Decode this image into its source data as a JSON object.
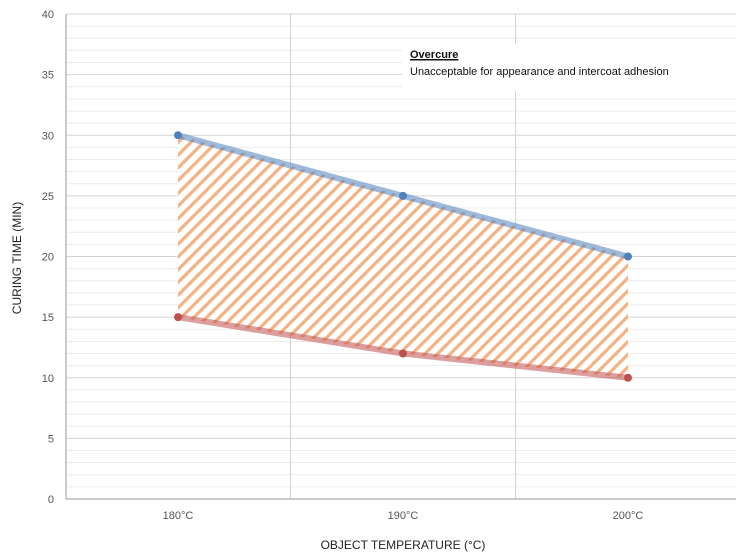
{
  "chart_data": {
    "type": "line",
    "categories": [
      "180°C",
      "190°C",
      "200°C"
    ],
    "series": [
      {
        "values": [
          30,
          25,
          20
        ],
        "color": "#4f81bd"
      },
      {
        "values": [
          15,
          12,
          10
        ],
        "color": "#c0504d"
      }
    ],
    "fill_between": {
      "color": "#f4b183",
      "pattern": "diagonal-hatch"
    },
    "xlabel": "OBJECT TEMPERATURE (°C)",
    "ylabel": "CURING TIME (MIN)",
    "ylim": [
      0,
      40
    ],
    "yticks": [
      0,
      5,
      10,
      15,
      20,
      25,
      30,
      35,
      40
    ],
    "grid": true,
    "annotation": {
      "title": "Overcure",
      "text": "Unacceptable for appearance and intercoat adhesion"
    }
  }
}
